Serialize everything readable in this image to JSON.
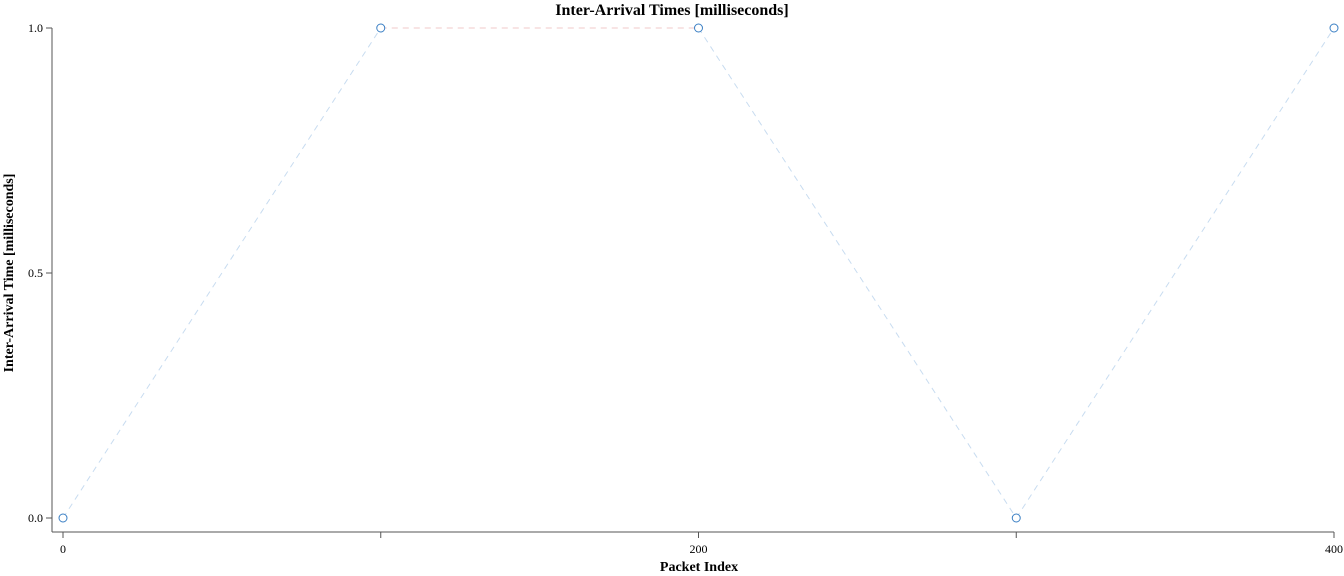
{
  "chart_data": {
    "type": "line",
    "title": "Inter-Arrival Times [milliseconds]",
    "xlabel": "Packet Index",
    "ylabel": "Inter-Arrival Time [milliseconds]",
    "xlim": [
      0,
      400
    ],
    "ylim": [
      0,
      1
    ],
    "xticks": [
      0,
      100,
      200,
      300,
      400
    ],
    "xtick_labels": [
      "0",
      "",
      "200",
      "",
      "400"
    ],
    "yticks": [
      0,
      0.5,
      1
    ],
    "ytick_labels": [
      "0.0",
      "0.5",
      "1.0"
    ],
    "grid": false,
    "series": [
      {
        "x": [
          0,
          100,
          200,
          300,
          400
        ],
        "y": [
          0,
          1,
          1,
          0,
          1
        ],
        "line_color": "#f0c8c8",
        "line_color_alt": "#c8dcf0",
        "marker_color": "#3a7fc4",
        "marker": "open-circle",
        "line_style": "dashed"
      }
    ]
  }
}
